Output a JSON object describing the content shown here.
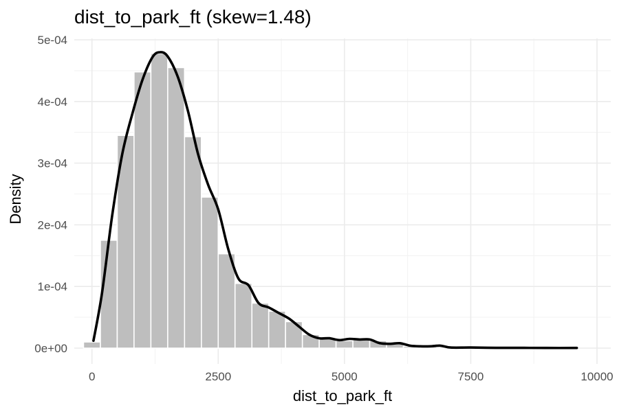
{
  "chart_data": {
    "type": "bar",
    "title": "dist_to_park_ft (skew=1.48)",
    "xlabel": "dist_to_park_ft",
    "ylabel": "Density",
    "xlim": [
      -350,
      10000
    ],
    "ylim": [
      0,
      0.0005
    ],
    "x_ticks": [
      0,
      2500,
      5000,
      7500,
      10000
    ],
    "x_tick_labels": [
      "0",
      "2500",
      "5000",
      "7500",
      "10000"
    ],
    "y_ticks": [
      0,
      0.0001,
      0.0002,
      0.0003,
      0.0004,
      0.0005
    ],
    "y_tick_labels": [
      "0e+00",
      "1e-04",
      "2e-04",
      "3e-04",
      "4e-04",
      "5e-04"
    ],
    "grid": true,
    "histogram": {
      "bin_width": 333,
      "bins": [
        {
          "x0": -167,
          "x1": 167,
          "density": 1e-05
        },
        {
          "x0": 167,
          "x1": 500,
          "density": 0.000175
        },
        {
          "x0": 500,
          "x1": 833,
          "density": 0.000345
        },
        {
          "x0": 833,
          "x1": 1167,
          "density": 0.000448
        },
        {
          "x0": 1167,
          "x1": 1500,
          "density": 0.000478
        },
        {
          "x0": 1500,
          "x1": 1833,
          "density": 0.000455
        },
        {
          "x0": 1833,
          "x1": 2167,
          "density": 0.000343
        },
        {
          "x0": 2167,
          "x1": 2500,
          "density": 0.000245
        },
        {
          "x0": 2500,
          "x1": 2833,
          "density": 0.000153
        },
        {
          "x0": 2833,
          "x1": 3167,
          "density": 0.000105
        },
        {
          "x0": 3167,
          "x1": 3500,
          "density": 7.3e-05
        },
        {
          "x0": 3500,
          "x1": 3833,
          "density": 6e-05
        },
        {
          "x0": 3833,
          "x1": 4167,
          "density": 4.3e-05
        },
        {
          "x0": 4167,
          "x1": 4500,
          "density": 2.2e-05
        },
        {
          "x0": 4500,
          "x1": 4833,
          "density": 1.5e-05
        },
        {
          "x0": 4833,
          "x1": 5167,
          "density": 1.2e-05
        },
        {
          "x0": 5167,
          "x1": 5500,
          "density": 1.5e-05
        },
        {
          "x0": 5500,
          "x1": 5833,
          "density": 1.2e-05
        },
        {
          "x0": 5833,
          "x1": 6167,
          "density": 7e-06
        },
        {
          "x0": 6167,
          "x1": 6500,
          "density": 3e-06
        },
        {
          "x0": 6500,
          "x1": 6833,
          "density": 3e-06
        },
        {
          "x0": 6833,
          "x1": 7167,
          "density": 2e-06
        },
        {
          "x0": 7167,
          "x1": 7500,
          "density": 1e-06
        },
        {
          "x0": 7500,
          "x1": 7833,
          "density": 1e-06
        },
        {
          "x0": 7833,
          "x1": 8167,
          "density": 5e-07
        },
        {
          "x0": 8167,
          "x1": 8500,
          "density": 5e-07
        },
        {
          "x0": 8500,
          "x1": 8833,
          "density": 3e-07
        },
        {
          "x0": 8833,
          "x1": 9167,
          "density": 3e-07
        },
        {
          "x0": 9167,
          "x1": 9500,
          "density": 3e-07
        }
      ]
    },
    "density_curve": {
      "x": [
        30,
        200,
        400,
        600,
        800,
        1000,
        1200,
        1350,
        1500,
        1700,
        1900,
        2100,
        2300,
        2500,
        2700,
        2900,
        3100,
        3300,
        3500,
        3700,
        3900,
        4100,
        4300,
        4500,
        4700,
        4900,
        5100,
        5300,
        5500,
        5700,
        5900,
        6100,
        6300,
        6500,
        6700,
        6900,
        7100,
        7500,
        8000,
        8500,
        9000,
        9600
      ],
      "y": [
        1.2e-05,
        9e-05,
        0.000215,
        0.000315,
        0.00038,
        0.000435,
        0.000472,
        0.00048,
        0.000473,
        0.00044,
        0.000385,
        0.000315,
        0.000265,
        0.000225,
        0.00016,
        0.000113,
        0.000102,
        7.3e-05,
        6.6e-05,
        5.7e-05,
        4.8e-05,
        3.5e-05,
        2.2e-05,
        1.6e-05,
        1.6e-05,
        1.3e-05,
        1.5e-05,
        1.4e-05,
        1.4e-05,
        8e-06,
        7e-06,
        8e-06,
        4e-06,
        3e-06,
        3e-06,
        4e-06,
        1e-06,
        1e-06,
        5e-07,
        5e-07,
        3e-07,
        3e-07
      ]
    }
  }
}
